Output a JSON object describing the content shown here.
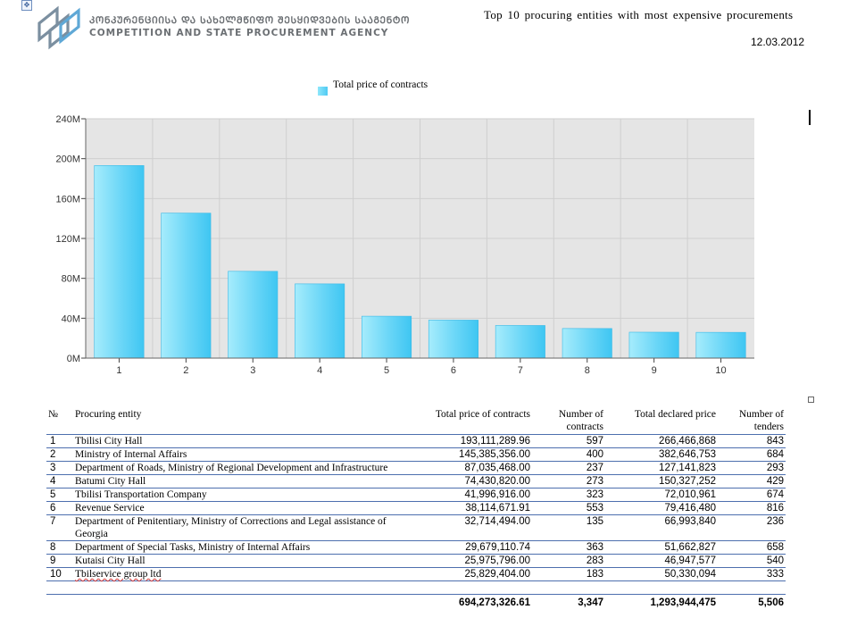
{
  "header": {
    "agency_name_ka": "ᲙᲝᲜᲙᲣᲠᲔᲜᲪᲘᲘᲡᲐ ᲓᲐ ᲡᲐᲮᲔᲚᲛᲬᲘᲤᲝ ᲨᲔᲡᲧᲘᲓᲕᲔᲑᲘᲡ ᲡᲐᲐᲒᲔᲜᲢᲝ",
    "agency_name_en": "COMPETITION AND STATE PROCUREMENT AGENCY",
    "report_title": "Top 10 procuring  entities with most expensive procurements",
    "date": "12.03.2012"
  },
  "icons": {
    "move_handle": "move-handle-icon",
    "logo": "agency-logo"
  },
  "colors": {
    "bar_light": "#a6ecfc",
    "bar_dark": "#3fc6f2",
    "plot_bg": "#e5e5e5",
    "grid": "#cfcfcf",
    "table_rule": "#4d6fae"
  },
  "chart_data": {
    "type": "bar",
    "title": "",
    "legend": [
      "Total price of contracts"
    ],
    "legend_placement": "top-center",
    "categories": [
      "1",
      "2",
      "3",
      "4",
      "5",
      "6",
      "7",
      "8",
      "9",
      "10"
    ],
    "series": [
      {
        "name": "Total price of contracts",
        "values": [
          193111289.96,
          145385356.0,
          87035468.0,
          74430820.0,
          41996916.0,
          38114671.91,
          32714494.0,
          29679110.74,
          25975796.0,
          25829404.0
        ]
      }
    ],
    "ylim": [
      0,
      240000000
    ],
    "yticks": [
      0,
      40000000,
      80000000,
      120000000,
      160000000,
      200000000,
      240000000
    ],
    "ytick_labels": [
      "0M",
      "40M",
      "80M",
      "120M",
      "160M",
      "200M",
      "240M"
    ],
    "grid": true,
    "xlabel": "",
    "ylabel": ""
  },
  "table": {
    "headers": {
      "no": "№",
      "entity": "Procuring entity",
      "total_price": "Total price of contracts",
      "num_contracts": "Number of contracts",
      "declared_price": "Total declared price",
      "num_tenders": "Number of tenders"
    },
    "rows": [
      {
        "no": "1",
        "entity": "Tbilisi City Hall",
        "total_price": "193,111,289.96",
        "num_contracts": "597",
        "declared_price": "266,466,868",
        "num_tenders": "843"
      },
      {
        "no": "2",
        "entity": "Ministry of Internal Affairs",
        "total_price": "145,385,356.00",
        "num_contracts": "400",
        "declared_price": "382,646,753",
        "num_tenders": "684"
      },
      {
        "no": "3",
        "entity": "Department of Roads, Ministry of Regional Development and Infrastructure",
        "total_price": "87,035,468.00",
        "num_contracts": "237",
        "declared_price": "127,141,823",
        "num_tenders": "293"
      },
      {
        "no": "4",
        "entity": "Batumi City Hall",
        "total_price": "74,430,820.00",
        "num_contracts": "273",
        "declared_price": "150,327,252",
        "num_tenders": "429"
      },
      {
        "no": "5",
        "entity": "Tbilisi Transportation Company",
        "total_price": "41,996,916.00",
        "num_contracts": "323",
        "declared_price": "72,010,961",
        "num_tenders": "674"
      },
      {
        "no": "6",
        "entity": "Revenue Service",
        "total_price": "38,114,671.91",
        "num_contracts": "553",
        "declared_price": "79,416,480",
        "num_tenders": "816"
      },
      {
        "no": "7",
        "entity": "Department of Penitentiary, Ministry of Corrections and Legal assistance of Georgia",
        "total_price": "32,714,494.00",
        "num_contracts": "135",
        "declared_price": "66,993,840",
        "num_tenders": "236"
      },
      {
        "no": "8",
        "entity": "Department of  Special Tasks, Ministry of Internal Affairs",
        "total_price": "29,679,110.74",
        "num_contracts": "363",
        "declared_price": "51,662,827",
        "num_tenders": "658"
      },
      {
        "no": "9",
        "entity": "Kutaisi City Hall",
        "total_price": "25,975,796.00",
        "num_contracts": "283",
        "declared_price": "46,947,577",
        "num_tenders": "540"
      },
      {
        "no": "10",
        "entity": "Tbilservice group ltd",
        "total_price": "25,829,404.00",
        "num_contracts": "183",
        "declared_price": "50,330,094",
        "num_tenders": "333"
      }
    ],
    "totals": {
      "total_price": "694,273,326.61",
      "num_contracts": "3,347",
      "declared_price": "1,293,944,475",
      "num_tenders": "5,506"
    }
  }
}
